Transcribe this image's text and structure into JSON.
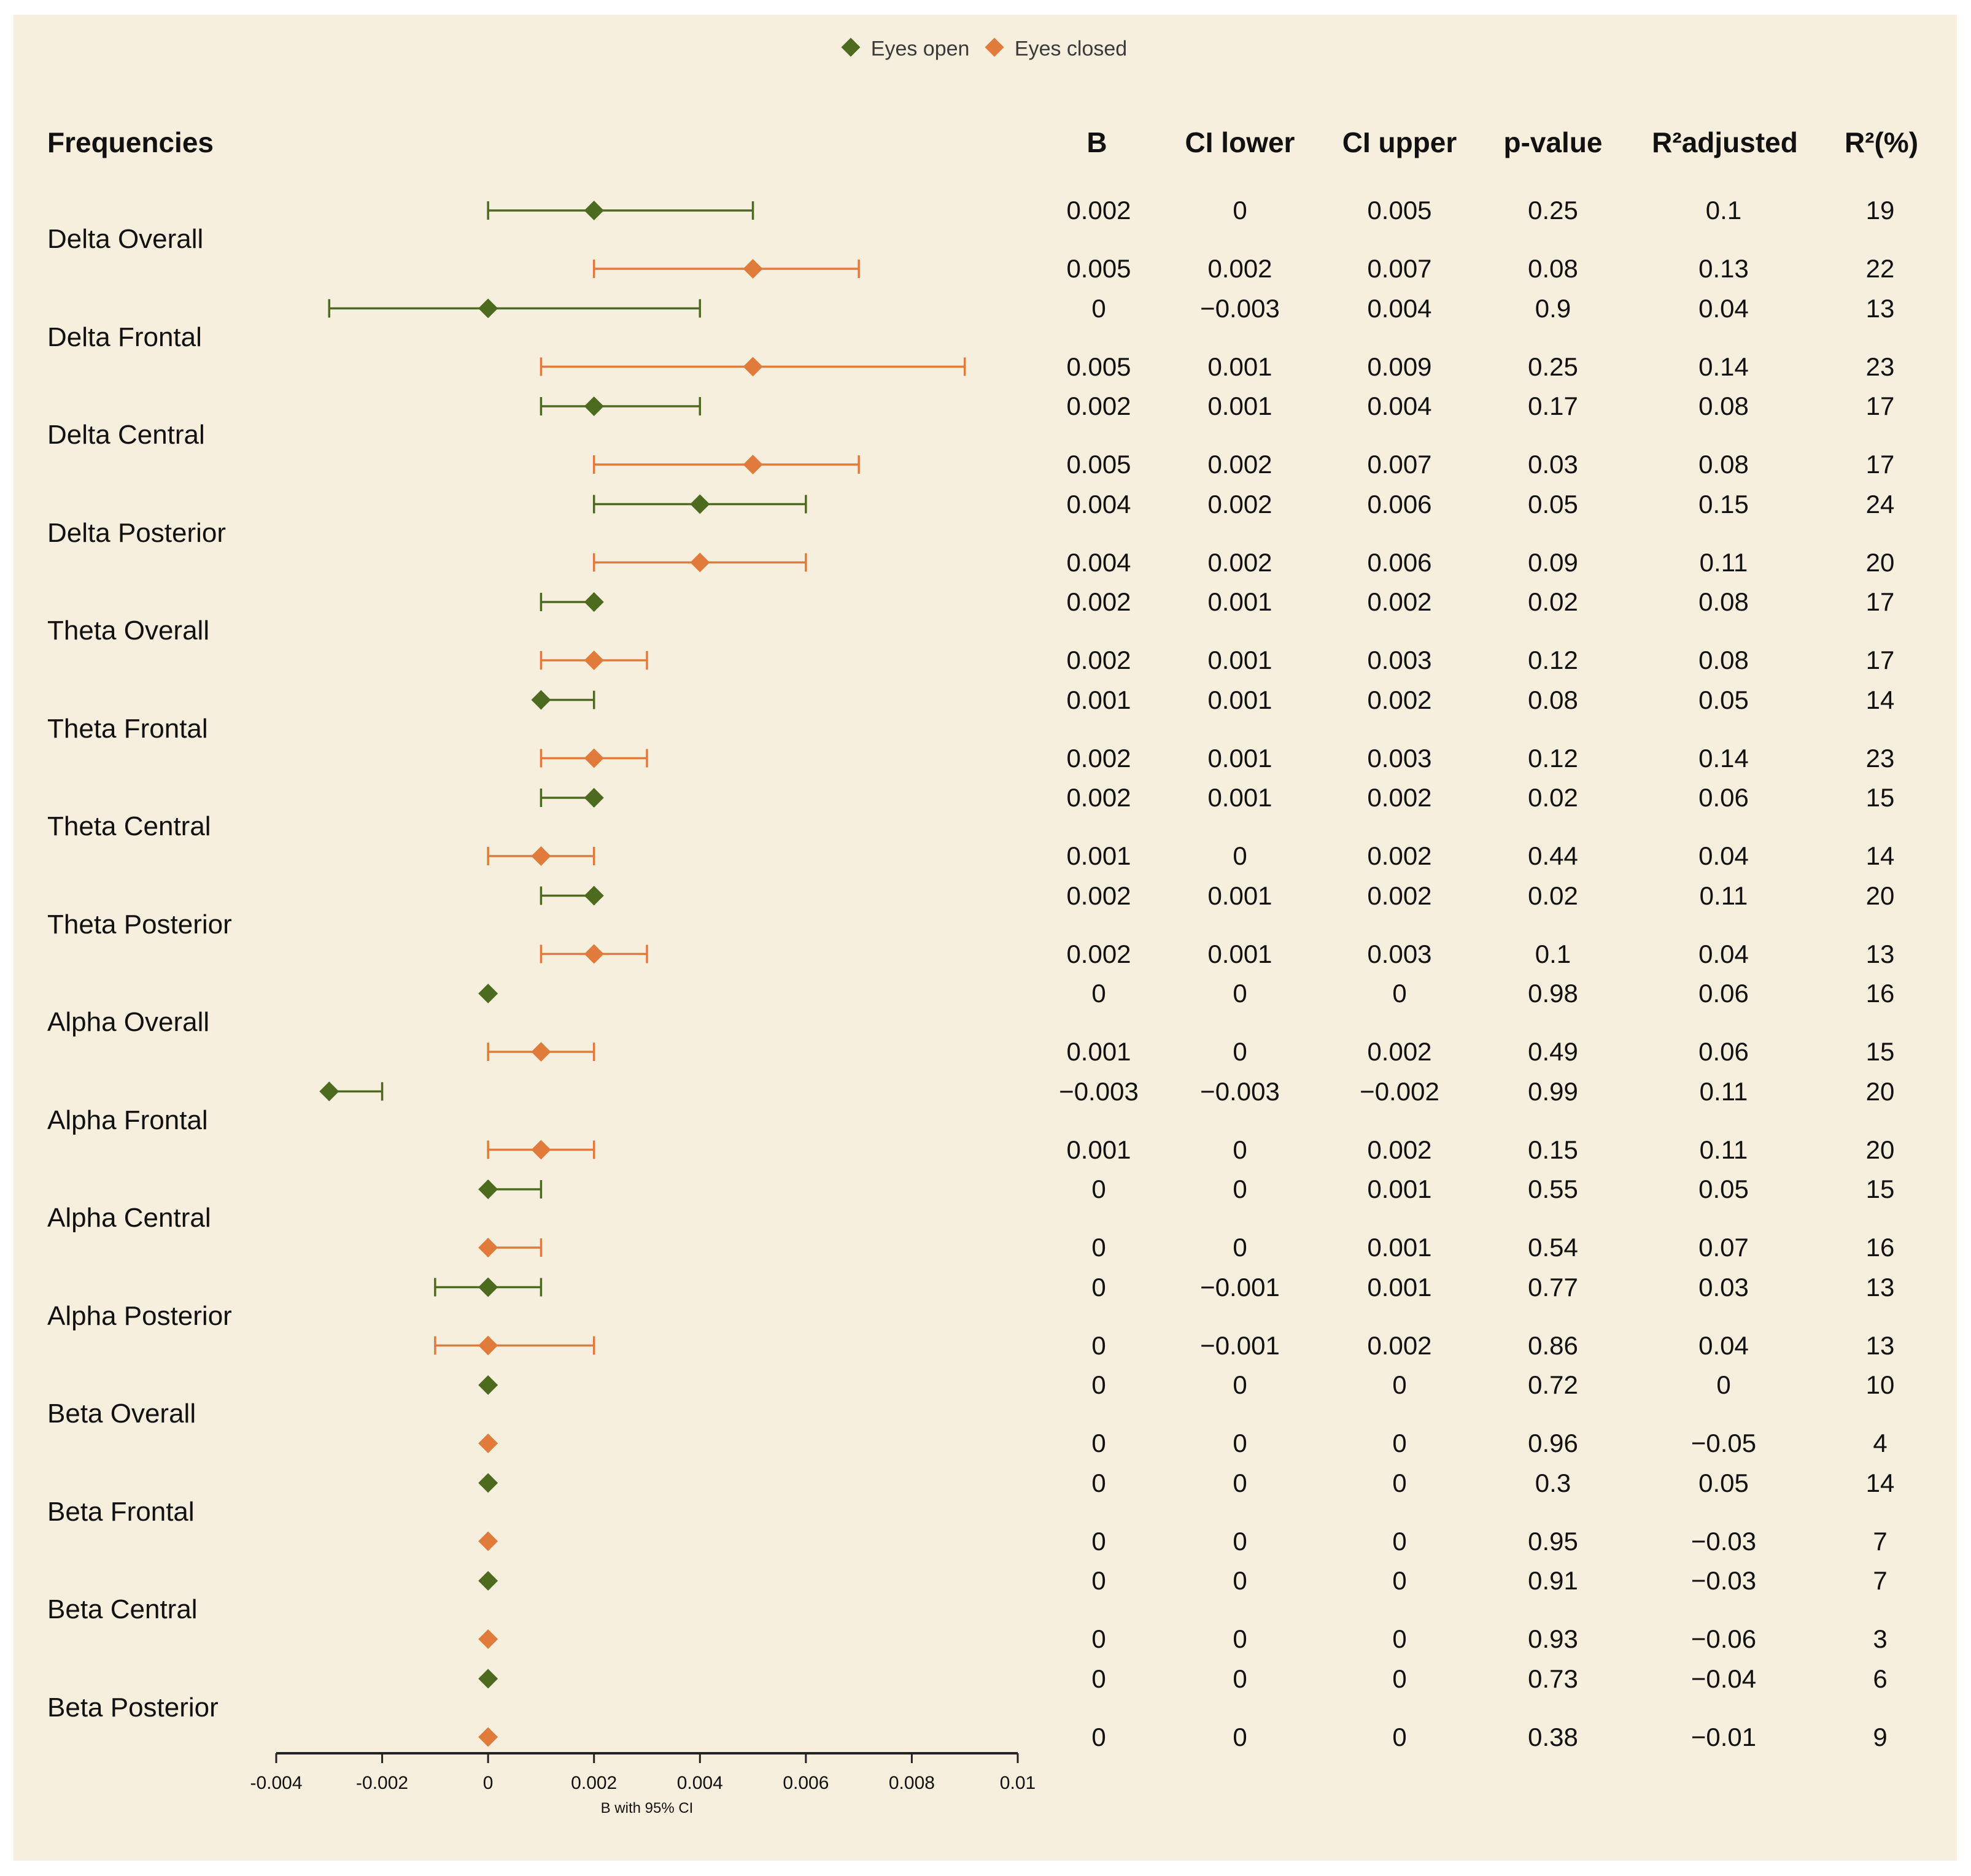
{
  "colors": {
    "eyes_open": "#4c6b1f",
    "eyes_closed": "#e07b3c",
    "background": "#f7efde"
  },
  "legend": {
    "eyes_open": "Eyes open",
    "eyes_closed": "Eyes closed"
  },
  "table_headers": {
    "frequencies": "Frequencies",
    "b": "B",
    "ci_lower": "CI lower",
    "ci_upper": "CI upper",
    "p_value": "p-value",
    "r2_adjusted": "R²adjusted",
    "r2_pct": "R²(%)"
  },
  "chart_data": {
    "type": "forest",
    "xlabel": "B with 95% CI",
    "xlim": [
      -0.004,
      0.01
    ],
    "xticks": [
      "-0.004",
      "-0.002",
      "0",
      "0.002",
      "0.004",
      "0.006",
      "0.008",
      "0.01"
    ],
    "grid": false,
    "legend_position": "top-center",
    "series_names": [
      "Eyes open",
      "Eyes closed"
    ],
    "rows": [
      {
        "label": "Delta Overall",
        "open": {
          "b": "0.002",
          "lo": "0",
          "hi": "0.005",
          "p": "0.25",
          "r2adj": "0.1",
          "r2": "19"
        },
        "closed": {
          "b": "0.005",
          "lo": "0.002",
          "hi": "0.007",
          "p": "0.08",
          "r2adj": "0.13",
          "r2": "22"
        }
      },
      {
        "label": "Delta Frontal",
        "open": {
          "b": "0",
          "lo": "−0.003",
          "hi": "0.004",
          "p": "0.9",
          "r2adj": "0.04",
          "r2": "13"
        },
        "closed": {
          "b": "0.005",
          "lo": "0.001",
          "hi": "0.009",
          "p": "0.25",
          "r2adj": "0.14",
          "r2": "23"
        }
      },
      {
        "label": "Delta Central",
        "open": {
          "b": "0.002",
          "lo": "0.001",
          "hi": "0.004",
          "p": "0.17",
          "r2adj": "0.08",
          "r2": "17"
        },
        "closed": {
          "b": "0.005",
          "lo": "0.002",
          "hi": "0.007",
          "p": "0.03",
          "r2adj": "0.08",
          "r2": "17"
        }
      },
      {
        "label": "Delta Posterior",
        "open": {
          "b": "0.004",
          "lo": "0.002",
          "hi": "0.006",
          "p": "0.05",
          "r2adj": "0.15",
          "r2": "24"
        },
        "closed": {
          "b": "0.004",
          "lo": "0.002",
          "hi": "0.006",
          "p": "0.09",
          "r2adj": "0.11",
          "r2": "20"
        }
      },
      {
        "label": "Theta Overall",
        "open": {
          "b": "0.002",
          "lo": "0.001",
          "hi": "0.002",
          "p": "0.02",
          "r2adj": "0.08",
          "r2": "17"
        },
        "closed": {
          "b": "0.002",
          "lo": "0.001",
          "hi": "0.003",
          "p": "0.12",
          "r2adj": "0.08",
          "r2": "17"
        }
      },
      {
        "label": "Theta Frontal",
        "open": {
          "b": "0.001",
          "lo": "0.001",
          "hi": "0.002",
          "p": "0.08",
          "r2adj": "0.05",
          "r2": "14"
        },
        "closed": {
          "b": "0.002",
          "lo": "0.001",
          "hi": "0.003",
          "p": "0.12",
          "r2adj": "0.14",
          "r2": "23"
        }
      },
      {
        "label": "Theta Central",
        "open": {
          "b": "0.002",
          "lo": "0.001",
          "hi": "0.002",
          "p": "0.02",
          "r2adj": "0.06",
          "r2": "15"
        },
        "closed": {
          "b": "0.001",
          "lo": "0",
          "hi": "0.002",
          "p": "0.44",
          "r2adj": "0.04",
          "r2": "14"
        }
      },
      {
        "label": "Theta Posterior",
        "open": {
          "b": "0.002",
          "lo": "0.001",
          "hi": "0.002",
          "p": "0.02",
          "r2adj": "0.11",
          "r2": "20"
        },
        "closed": {
          "b": "0.002",
          "lo": "0.001",
          "hi": "0.003",
          "p": "0.1",
          "r2adj": "0.04",
          "r2": "13"
        }
      },
      {
        "label": "Alpha Overall",
        "open": {
          "b": "0",
          "lo": "0",
          "hi": "0",
          "p": "0.98",
          "r2adj": "0.06",
          "r2": "16"
        },
        "closed": {
          "b": "0.001",
          "lo": "0",
          "hi": "0.002",
          "p": "0.49",
          "r2adj": "0.06",
          "r2": "15"
        }
      },
      {
        "label": "Alpha Frontal",
        "open": {
          "b": "−0.003",
          "lo": "−0.003",
          "hi": "−0.002",
          "p": "0.99",
          "r2adj": "0.11",
          "r2": "20"
        },
        "closed": {
          "b": "0.001",
          "lo": "0",
          "hi": "0.002",
          "p": "0.15",
          "r2adj": "0.11",
          "r2": "20"
        }
      },
      {
        "label": "Alpha Central",
        "open": {
          "b": "0",
          "lo": "0",
          "hi": "0.001",
          "p": "0.55",
          "r2adj": "0.05",
          "r2": "15"
        },
        "closed": {
          "b": "0",
          "lo": "0",
          "hi": "0.001",
          "p": "0.54",
          "r2adj": "0.07",
          "r2": "16"
        }
      },
      {
        "label": "Alpha Posterior",
        "open": {
          "b": "0",
          "lo": "−0.001",
          "hi": "0.001",
          "p": "0.77",
          "r2adj": "0.03",
          "r2": "13"
        },
        "closed": {
          "b": "0",
          "lo": "−0.001",
          "hi": "0.002",
          "p": "0.86",
          "r2adj": "0.04",
          "r2": "13"
        }
      },
      {
        "label": "Beta Overall",
        "open": {
          "b": "0",
          "lo": "0",
          "hi": "0",
          "p": "0.72",
          "r2adj": "0",
          "r2": "10"
        },
        "closed": {
          "b": "0",
          "lo": "0",
          "hi": "0",
          "p": "0.96",
          "r2adj": "−0.05",
          "r2": "4"
        }
      },
      {
        "label": "Beta Frontal",
        "open": {
          "b": "0",
          "lo": "0",
          "hi": "0",
          "p": "0.3",
          "r2adj": "0.05",
          "r2": "14"
        },
        "closed": {
          "b": "0",
          "lo": "0",
          "hi": "0",
          "p": "0.95",
          "r2adj": "−0.03",
          "r2": "7"
        }
      },
      {
        "label": "Beta Central",
        "open": {
          "b": "0",
          "lo": "0",
          "hi": "0",
          "p": "0.91",
          "r2adj": "−0.03",
          "r2": "7"
        },
        "closed": {
          "b": "0",
          "lo": "0",
          "hi": "0",
          "p": "0.93",
          "r2adj": "−0.06",
          "r2": "3"
        }
      },
      {
        "label": "Beta Posterior",
        "open": {
          "b": "0",
          "lo": "0",
          "hi": "0",
          "p": "0.73",
          "r2adj": "−0.04",
          "r2": "6"
        },
        "closed": {
          "b": "0",
          "lo": "0",
          "hi": "0",
          "p": "0.38",
          "r2adj": "−0.01",
          "r2": "9"
        }
      }
    ]
  }
}
